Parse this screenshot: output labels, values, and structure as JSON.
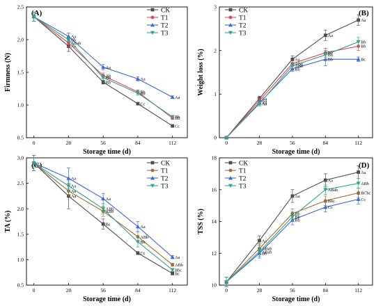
{
  "series_colors": {
    "CK": "#4d4d4d",
    "T1": "#e8444c",
    "T2": "#3a66d6",
    "T3": "#2fa58a"
  },
  "series_colors_cd": {
    "CK": "#4d4d4d",
    "T1": "#a26a2e",
    "T2": "#3a66d6",
    "T3": "#2fa58a"
  },
  "chart_data": [
    {
      "panel": "(A)",
      "type": "line",
      "x": [
        0,
        28,
        56,
        84,
        112
      ],
      "xlabel": "Storage time (d)",
      "ylabel": "Firmness (N)",
      "ylim": [
        0.5,
        2.5
      ],
      "yticks": [
        0.5,
        1.0,
        1.5,
        2.0,
        2.5
      ],
      "legend": "top-right",
      "series": [
        {
          "name": "CK",
          "marker": "square",
          "values": [
            2.35,
            1.9,
            1.35,
            1.02,
            0.68
          ],
          "err": [
            0.07,
            0.08,
            0.03,
            0.02,
            0.02
          ],
          "labels": [
            "",
            "Aa",
            "Bb",
            "Cc",
            "Cc"
          ]
        },
        {
          "name": "T1",
          "marker": "circle",
          "values": [
            2.35,
            1.95,
            1.45,
            1.2,
            0.8
          ],
          "err": [
            0.07,
            0.05,
            0.04,
            0.03,
            0.02
          ],
          "labels": [
            "",
            "ABab",
            "Ab",
            "Bb",
            "Bb"
          ]
        },
        {
          "name": "T2",
          "marker": "triangle-up",
          "values": [
            2.35,
            2.05,
            1.58,
            1.4,
            1.12
          ],
          "err": [
            0.07,
            0.05,
            0.04,
            0.03,
            0.02
          ],
          "labels": [
            "",
            "Aa",
            "Aa",
            "Aa",
            "Aa"
          ]
        },
        {
          "name": "T3",
          "marker": "triangle-down",
          "values": [
            2.35,
            2.0,
            1.42,
            1.18,
            0.82
          ],
          "err": [
            0.07,
            0.05,
            0.04,
            0.03,
            0.02
          ],
          "labels": [
            "",
            "Bb",
            "Bb",
            "Bb",
            "Bb"
          ]
        }
      ]
    },
    {
      "panel": "(B)",
      "type": "line",
      "x": [
        0,
        28,
        56,
        84,
        112
      ],
      "xlabel": "Storage time (d)",
      "ylabel": "Weight loss (%)",
      "ylim": [
        0,
        3
      ],
      "yticks": [
        0,
        1,
        2,
        3
      ],
      "legend": "top-left",
      "series": [
        {
          "name": "CK",
          "marker": "square",
          "values": [
            0,
            0.9,
            1.8,
            2.35,
            2.7
          ],
          "err": [
            0,
            0.05,
            0.08,
            0.12,
            0.12
          ],
          "labels": [
            "",
            "Aa",
            "Aa",
            "Aa",
            "Aa"
          ]
        },
        {
          "name": "T1",
          "marker": "circle",
          "values": [
            0,
            0.85,
            1.7,
            1.95,
            2.1
          ],
          "err": [
            0,
            0.05,
            0.06,
            0.1,
            0.1
          ],
          "labels": [
            "",
            "Aa",
            "ABb",
            "Bb",
            "Bb"
          ]
        },
        {
          "name": "T2",
          "marker": "triangle-up",
          "values": [
            0,
            0.8,
            1.58,
            1.8,
            1.8
          ],
          "err": [
            0,
            0.05,
            0.06,
            0.15,
            0.05
          ],
          "labels": [
            "",
            "Aa",
            "Bb",
            "Bb",
            "Bc"
          ]
        },
        {
          "name": "T3",
          "marker": "triangle-down",
          "values": [
            0,
            0.78,
            1.65,
            1.9,
            2.2
          ],
          "err": [
            0,
            0.05,
            0.06,
            0.1,
            0.1
          ],
          "labels": [
            "",
            "Aa",
            "ABb",
            "Bb",
            "Bb"
          ]
        }
      ]
    },
    {
      "panel": "(C)",
      "type": "line",
      "x": [
        0,
        28,
        56,
        84,
        112
      ],
      "xlabel": "Storage time (d)",
      "ylabel": "TA (%)",
      "ylim": [
        0.5,
        3.0
      ],
      "yticks": [
        0.5,
        1.0,
        1.5,
        2.0,
        2.5,
        3.0
      ],
      "legend": "top-right",
      "series": [
        {
          "name": "CK",
          "marker": "square",
          "values": [
            2.9,
            2.25,
            1.7,
            1.13,
            0.73
          ],
          "err": [
            0.15,
            0.25,
            0.1,
            0.03,
            0.03
          ],
          "labels": [
            "",
            "Aa",
            "Bc",
            "Cc",
            "Bc"
          ]
        },
        {
          "name": "T1",
          "marker": "circle",
          "values": [
            2.9,
            2.35,
            1.95,
            1.45,
            0.9
          ],
          "err": [
            0.15,
            0.1,
            0.1,
            0.1,
            0.03
          ],
          "labels": [
            "",
            "Aa",
            "ABb",
            "ABb",
            "ABb"
          ]
        },
        {
          "name": "T2",
          "marker": "triangle-up",
          "values": [
            2.9,
            2.6,
            2.2,
            1.65,
            1.05
          ],
          "err": [
            0.15,
            0.2,
            0.1,
            0.1,
            0.03
          ],
          "labels": [
            "",
            "Aa",
            "Aa",
            "Aa",
            "Aa"
          ]
        },
        {
          "name": "T3",
          "marker": "triangle-down",
          "values": [
            2.9,
            2.45,
            2.0,
            1.35,
            0.8
          ],
          "err": [
            0.15,
            0.1,
            0.1,
            0.1,
            0.03
          ],
          "labels": [
            "",
            "Aa",
            "ABb",
            "Bb",
            "Bbc"
          ]
        }
      ]
    },
    {
      "panel": "(D)",
      "type": "line",
      "x": [
        0,
        28,
        56,
        84,
        112
      ],
      "xlabel": "Storage time (d)",
      "ylabel": "TSS (%)",
      "ylim": [
        10,
        18
      ],
      "yticks": [
        10,
        12,
        14,
        16,
        18
      ],
      "legend": "top-left",
      "series": [
        {
          "name": "CK",
          "marker": "square",
          "values": [
            10.2,
            12.8,
            15.6,
            16.6,
            17.1
          ],
          "err": [
            0.3,
            0.3,
            0.4,
            0.4,
            0.4
          ],
          "labels": [
            "",
            "Aa",
            "Aa",
            "Aa",
            "Aa"
          ]
        },
        {
          "name": "T1",
          "marker": "circle",
          "values": [
            10.2,
            12.3,
            14.5,
            15.3,
            15.8
          ],
          "err": [
            0.3,
            0.3,
            0.3,
            0.3,
            0.3
          ],
          "labels": [
            "",
            "ABab",
            "Bb",
            "Bbc",
            "BCbc"
          ]
        },
        {
          "name": "T2",
          "marker": "triangle-up",
          "values": [
            10.2,
            12.0,
            14.1,
            14.9,
            15.4
          ],
          "err": [
            0.3,
            0.3,
            0.3,
            0.3,
            0.3
          ],
          "labels": [
            "",
            "Bb",
            "Bb",
            "Cc",
            "Cc"
          ]
        },
        {
          "name": "T3",
          "marker": "triangle-down",
          "values": [
            10.2,
            12.1,
            14.3,
            16.0,
            16.4
          ],
          "err": [
            0.3,
            0.3,
            0.3,
            0.3,
            0.3
          ],
          "labels": [
            "",
            "ABab",
            "Bb",
            "ABab",
            "ABb"
          ]
        }
      ]
    }
  ]
}
